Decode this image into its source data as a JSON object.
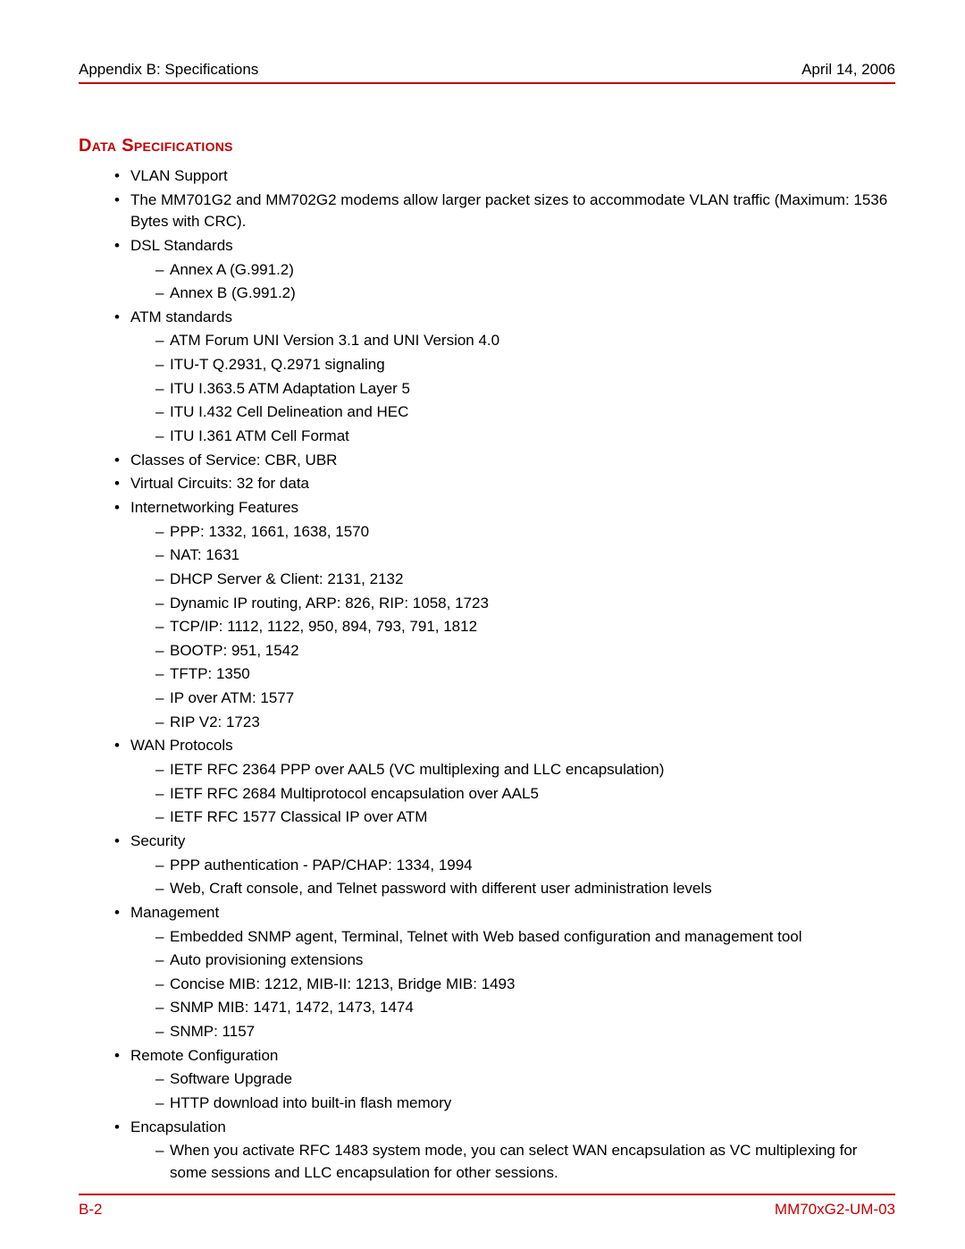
{
  "colors": {
    "accent": "#c00000",
    "text": "#000000",
    "background": "#ffffff"
  },
  "typography": {
    "body_font": "Arial, Helvetica, sans-serif",
    "body_size_pt": 12,
    "title_size_pt": 15
  },
  "header": {
    "left": "Appendix B: Specifications",
    "right": "April 14, 2006"
  },
  "section_title": "Data Specifications",
  "items": [
    {
      "text": "VLAN Support"
    },
    {
      "text": "The MM701G2 and MM702G2 modems allow larger packet sizes to accommodate VLAN traffic (Maximum: 1536 Bytes with CRC)."
    },
    {
      "text": "DSL Standards",
      "sub": [
        "Annex A (G.991.2)",
        "Annex B (G.991.2)"
      ]
    },
    {
      "text": "ATM standards",
      "sub": [
        "ATM Forum UNI Version 3.1 and UNI Version 4.0",
        "ITU-T Q.2931, Q.2971 signaling",
        "ITU I.363.5 ATM Adaptation Layer 5",
        "ITU I.432 Cell Delineation and HEC",
        "ITU I.361 ATM Cell Format"
      ]
    },
    {
      "text": "Classes of Service: CBR, UBR"
    },
    {
      "text": "Virtual Circuits: 32 for data"
    },
    {
      "text": "Internetworking Features",
      "sub": [
        "PPP: 1332, 1661, 1638, 1570",
        "NAT: 1631",
        "DHCP Server & Client: 2131, 2132",
        "Dynamic IP routing, ARP: 826, RIP: 1058, 1723",
        "TCP/IP: 1112, 1122, 950, 894, 793, 791, 1812",
        "BOOTP: 951, 1542",
        "TFTP: 1350",
        "IP over ATM: 1577",
        "RIP V2: 1723"
      ]
    },
    {
      "text": "WAN Protocols",
      "sub": [
        "IETF RFC 2364 PPP over AAL5 (VC multiplexing and LLC encapsulation)",
        "IETF RFC 2684 Multiprotocol encapsulation over AAL5",
        "IETF RFC 1577 Classical IP over ATM"
      ]
    },
    {
      "text": "Security",
      "sub": [
        "PPP authentication - PAP/CHAP: 1334, 1994",
        "Web, Craft console, and Telnet password with different user administration levels"
      ]
    },
    {
      "text": "Management",
      "sub": [
        "Embedded SNMP agent, Terminal, Telnet with Web based configuration and management tool",
        "Auto provisioning extensions",
        "Concise MIB: 1212, MIB-II: 1213, Bridge MIB: 1493",
        "SNMP MIB: 1471, 1472, 1473, 1474",
        "SNMP: 1157"
      ]
    },
    {
      "text": "Remote Configuration",
      "sub": [
        "Software Upgrade",
        "HTTP download into built-in flash memory"
      ]
    },
    {
      "text": "Encapsulation",
      "sub": [
        "When you activate RFC 1483 system mode, you can select WAN encapsulation as VC multiplexing for some sessions and LLC encapsulation for other sessions."
      ]
    }
  ],
  "footer": {
    "left": "B-2",
    "right": "MM70xG2-UM-03"
  }
}
